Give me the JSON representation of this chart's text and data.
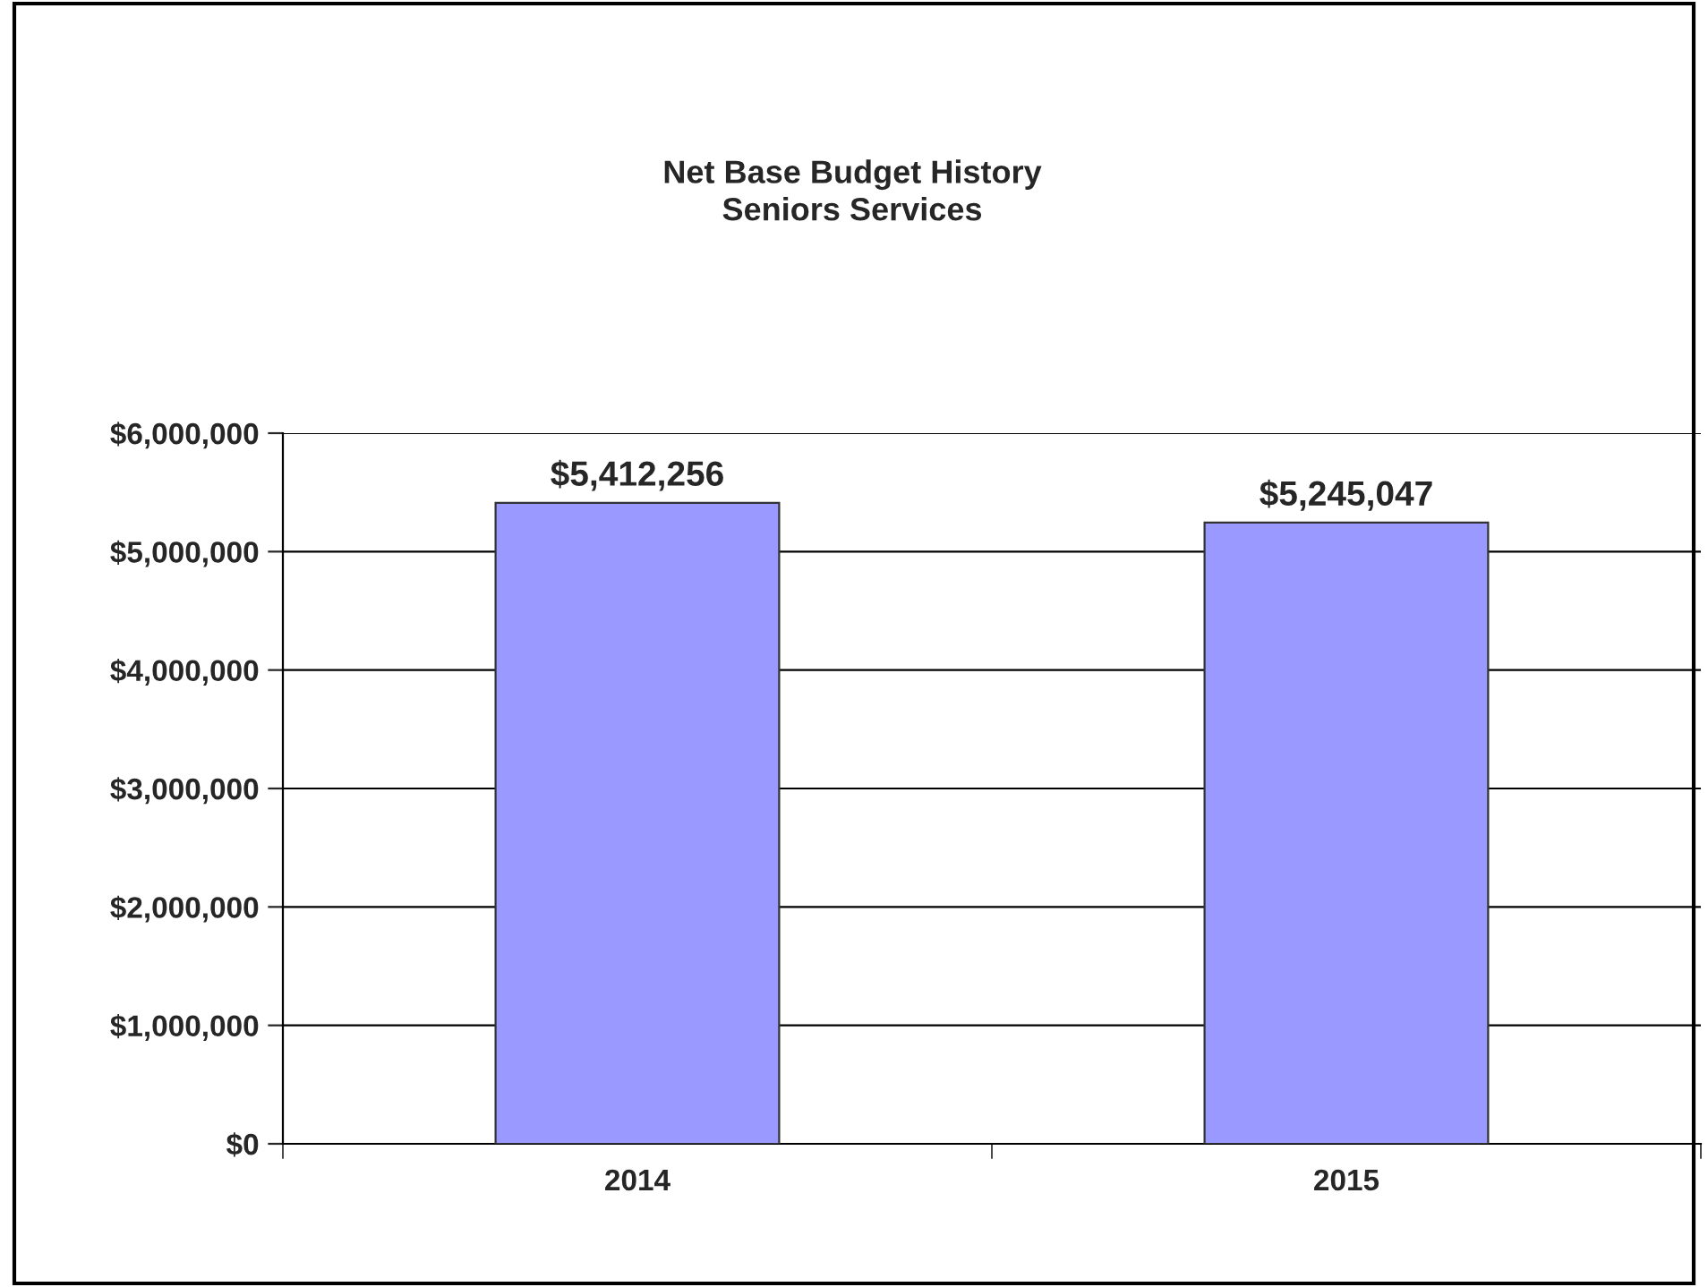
{
  "chart_data": {
    "type": "bar",
    "title": "Net Base Budget History\nSeniors Services",
    "categories": [
      "2014",
      "2015"
    ],
    "values": [
      5412256,
      5245047
    ],
    "value_labels": [
      "$5,412,256",
      "$5,245,047"
    ],
    "color": "#9999ff",
    "ylim": [
      0,
      6000000
    ],
    "yticks": [
      {
        "value": 0,
        "label": "$0"
      },
      {
        "value": 1000000,
        "label": "$1,000,000"
      },
      {
        "value": 2000000,
        "label": "$2,000,000"
      },
      {
        "value": 3000000,
        "label": "$3,000,000"
      },
      {
        "value": 4000000,
        "label": "$4,000,000"
      },
      {
        "value": 5000000,
        "label": "$5,000,000"
      },
      {
        "value": 6000000,
        "label": "$6,000,000"
      }
    ],
    "grid": "y",
    "legend": false
  }
}
